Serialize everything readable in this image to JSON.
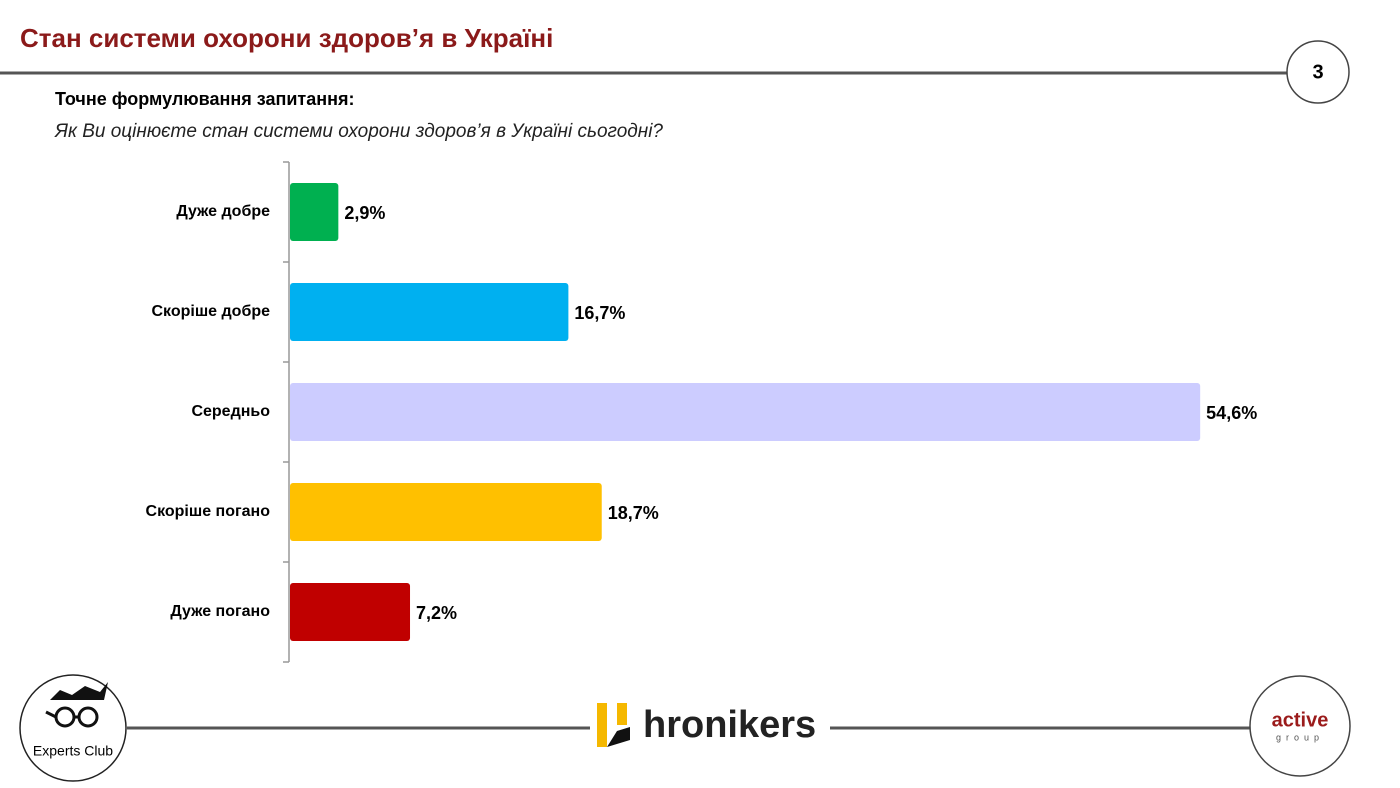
{
  "header": {
    "title": "Стан системи охорони здоров’я в Україні",
    "page_number": "3"
  },
  "question": {
    "label": "Точне формулювання запитання:",
    "text": "Як Ви оцінюєте стан системи охорони здоров’я в Україні сьогодні?"
  },
  "chart_data": {
    "type": "bar",
    "orientation": "horizontal",
    "categories": [
      "Дуже добре",
      "Скоріше добре",
      "Середньо",
      "Скоріше погано",
      "Дуже погано"
    ],
    "values": [
      2.9,
      16.7,
      54.6,
      18.7,
      7.2
    ],
    "value_labels": [
      "2,9%",
      "16,7%",
      "54,6%",
      "18,7%",
      "7,2%"
    ],
    "colors": [
      "#00b050",
      "#00b0f0",
      "#ccccff",
      "#ffc000",
      "#c00000"
    ]
  },
  "footer": {
    "left_logo": "Experts Club",
    "center_logo": "hronikers",
    "right_logo": "active",
    "right_logo_sub": "group"
  }
}
